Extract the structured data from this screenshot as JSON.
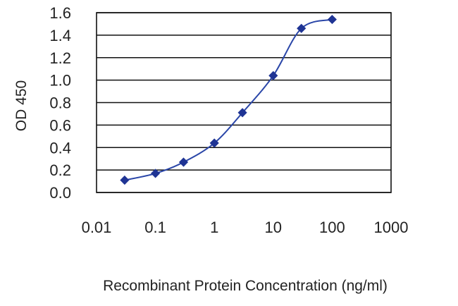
{
  "chart_data": {
    "type": "line",
    "title": "",
    "xlabel": "Recombinant Protein Concentration (ng/ml)",
    "ylabel": "OD 450",
    "x_scale": "log",
    "xlim": [
      0.01,
      1000
    ],
    "ylim": [
      0.0,
      1.6
    ],
    "x_ticks": [
      {
        "value": 0.01,
        "label": "0.01"
      },
      {
        "value": 0.1,
        "label": "0.1"
      },
      {
        "value": 1,
        "label": "1"
      },
      {
        "value": 10,
        "label": "10"
      },
      {
        "value": 100,
        "label": "100"
      },
      {
        "value": 1000,
        "label": "1000"
      }
    ],
    "y_ticks": [
      {
        "value": 0.0,
        "label": "0.0"
      },
      {
        "value": 0.2,
        "label": "0.2"
      },
      {
        "value": 0.4,
        "label": "0.4"
      },
      {
        "value": 0.6,
        "label": "0.6"
      },
      {
        "value": 0.8,
        "label": "0.8"
      },
      {
        "value": 1.0,
        "label": "1.0"
      },
      {
        "value": 1.2,
        "label": "1.2"
      },
      {
        "value": 1.4,
        "label": "1.4"
      },
      {
        "value": 1.6,
        "label": "1.6"
      }
    ],
    "grid": "horizontal",
    "legend": "none",
    "series": [
      {
        "x": [
          0.03,
          0.1,
          0.3,
          1,
          3,
          10,
          30,
          100
        ],
        "y": [
          0.11,
          0.17,
          0.27,
          0.44,
          0.71,
          1.04,
          1.46,
          1.54
        ]
      }
    ],
    "colors": {
      "series": "#2a46a8",
      "marker": "#1f3494",
      "grid": "#111111",
      "text": "#222222"
    }
  }
}
